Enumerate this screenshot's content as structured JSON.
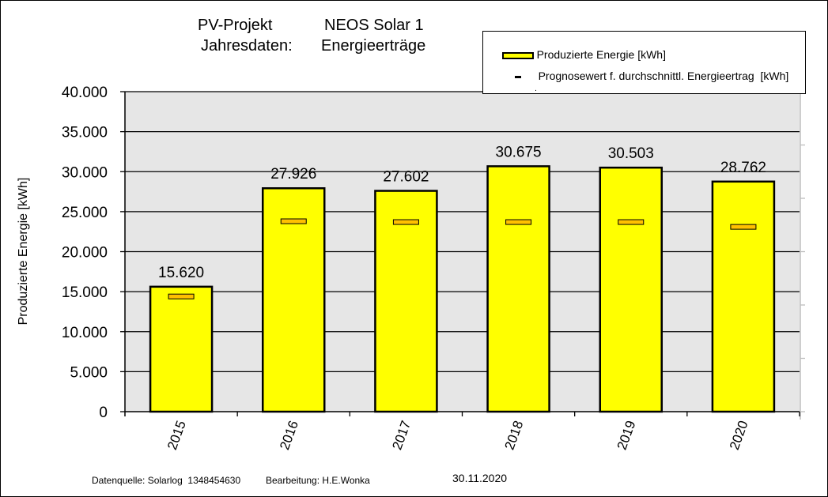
{
  "title": {
    "line1_left": "PV-Projekt",
    "line1_right": "NEOS Solar 1",
    "line2_left": "Jahresdaten:",
    "line2_right": "Energieerträge"
  },
  "legend": {
    "items": [
      {
        "label": "Produzierte Energie [kWh]",
        "symbol": "yellow-bar"
      },
      {
        "label": "Prognosewert f. durchschnittl. Energieertrag  [kWh]",
        "symbol": "dash"
      },
      {
        "label": ".",
        "symbol": "none"
      }
    ]
  },
  "footer": {
    "source": "Datenquelle: Solarlog  1348454630",
    "editor": "Bearbeitung: H.E.Wonka",
    "date": "30.11.2020"
  },
  "colors": {
    "bar_fill": "#ffff00",
    "forecast_fill": "#ffc000",
    "plot_background": "#e6e6e6",
    "gridline": "#000000"
  },
  "chart_data": {
    "type": "bar",
    "title": "PV-Projekt NEOS Solar 1 — Jahresdaten: Energieerträge",
    "xlabel": "",
    "ylabel": "Produzierte Energie [kWh]",
    "ylim": [
      0,
      40000
    ],
    "yticks": [
      0,
      5000,
      10000,
      15000,
      20000,
      25000,
      30000,
      35000,
      40000
    ],
    "ytick_labels": [
      "0",
      "5.000",
      "10.000",
      "15.000",
      "20.000",
      "25.000",
      "30.000",
      "35.000",
      "40.000"
    ],
    "grid": true,
    "legend_position": "top-right",
    "categories": [
      "2015",
      "2016",
      "2017",
      "2018",
      "2019",
      "2020"
    ],
    "series": [
      {
        "name": "Produzierte Energie [kWh]",
        "values": [
          15620,
          27926,
          27602,
          30675,
          30503,
          28762
        ],
        "labels": [
          "15.620",
          "27.926",
          "27.602",
          "30.675",
          "30.503",
          "28.762"
        ]
      },
      {
        "name": "Prognosewert f. durchschnittl. Energieertrag  [kWh]",
        "values": [
          14400,
          23800,
          23700,
          23700,
          23700,
          23100
        ]
      }
    ]
  }
}
